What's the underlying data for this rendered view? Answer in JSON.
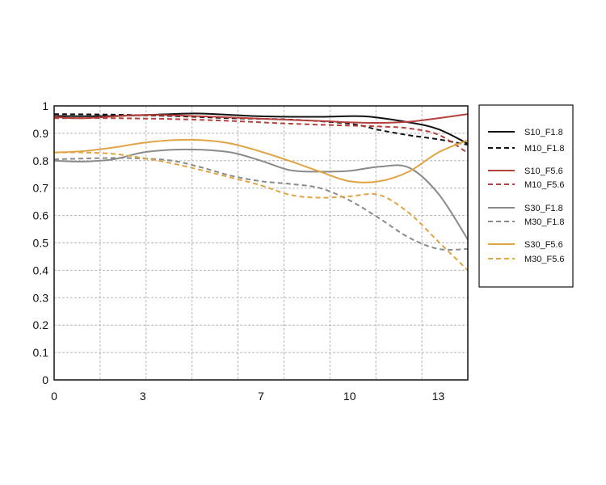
{
  "chart_data": {
    "type": "line",
    "title": "",
    "xlabel": "",
    "ylabel": "",
    "xlim": [
      0,
      14
    ],
    "ylim": [
      0,
      1
    ],
    "x_ticks": [
      0,
      3,
      7,
      10,
      13
    ],
    "x_tick_labels": [
      "0",
      "3",
      "7",
      "10",
      "13"
    ],
    "y_ticks": [
      0,
      0.1,
      0.2,
      0.3,
      0.4,
      0.5,
      0.6,
      0.7,
      0.8,
      0.9,
      1
    ],
    "y_tick_labels": [
      "0",
      "0.1",
      "0.2",
      "0.3",
      "0.4",
      "0.5",
      "0.6",
      "0.7",
      "0.8",
      "0.9",
      "1"
    ],
    "grid": true,
    "legend_position": "right",
    "series": [
      {
        "name": "S10_F1.8",
        "color": "#111111",
        "dash": "solid",
        "x": [
          0,
          2,
          4,
          5,
          7,
          9,
          10.5,
          12,
          13,
          14
        ],
        "y": [
          0.963,
          0.963,
          0.97,
          0.972,
          0.962,
          0.96,
          0.962,
          0.94,
          0.915,
          0.862
        ]
      },
      {
        "name": "M10_F1.8",
        "color": "#111111",
        "dash": "dashed",
        "x": [
          0,
          2,
          4,
          6,
          8,
          10,
          11,
          12,
          13,
          14
        ],
        "y": [
          0.97,
          0.968,
          0.963,
          0.955,
          0.95,
          0.935,
          0.912,
          0.893,
          0.878,
          0.858
        ]
      },
      {
        "name": "S10_F5.6",
        "color": "#b5403c",
        "dash": "solid",
        "x": [
          0,
          1,
          3,
          5,
          7,
          9,
          10,
          11,
          12,
          13,
          14
        ],
        "y": [
          0.96,
          0.955,
          0.967,
          0.962,
          0.953,
          0.945,
          0.94,
          0.938,
          0.942,
          0.955,
          0.97
        ]
      },
      {
        "name": "M10_F5.6",
        "color": "#b5403c",
        "dash": "dashed",
        "x": [
          0,
          2,
          4,
          6,
          8,
          10,
          11,
          12,
          13,
          14
        ],
        "y": [
          0.955,
          0.955,
          0.952,
          0.945,
          0.935,
          0.928,
          0.925,
          0.918,
          0.895,
          0.828
        ]
      },
      {
        "name": "S30_F1.8",
        "color": "#8a8a8a",
        "dash": "solid",
        "x": [
          0,
          1,
          2,
          3,
          4,
          5,
          6,
          7,
          8,
          9,
          10,
          11,
          12,
          13,
          14
        ],
        "y": [
          0.8,
          0.797,
          0.805,
          0.83,
          0.84,
          0.84,
          0.83,
          0.8,
          0.765,
          0.76,
          0.763,
          0.778,
          0.775,
          0.68,
          0.512
        ]
      },
      {
        "name": "M30_F1.8",
        "color": "#8a8a8a",
        "dash": "dashed",
        "x": [
          0,
          1,
          2,
          3,
          4,
          5,
          6,
          7,
          8,
          9,
          10,
          11,
          12,
          13,
          14
        ],
        "y": [
          0.805,
          0.808,
          0.81,
          0.808,
          0.8,
          0.775,
          0.745,
          0.725,
          0.715,
          0.7,
          0.655,
          0.59,
          0.52,
          0.478,
          0.478
        ]
      },
      {
        "name": "S30_F5.6",
        "color": "#e0a445",
        "dash": "solid",
        "x": [
          0,
          1,
          2,
          3,
          4,
          5,
          6,
          7,
          8,
          9,
          10,
          11,
          12,
          13,
          14
        ],
        "y": [
          0.83,
          0.835,
          0.848,
          0.865,
          0.875,
          0.875,
          0.862,
          0.833,
          0.798,
          0.76,
          0.725,
          0.725,
          0.76,
          0.83,
          0.875
        ]
      },
      {
        "name": "M30_F5.6",
        "color": "#e0a445",
        "dash": "dashed",
        "x": [
          0,
          1,
          2,
          3,
          4,
          5,
          6,
          7,
          8,
          9,
          10,
          11,
          12,
          13,
          14
        ],
        "y": [
          0.83,
          0.83,
          0.825,
          0.81,
          0.79,
          0.765,
          0.738,
          0.71,
          0.675,
          0.665,
          0.67,
          0.675,
          0.61,
          0.505,
          0.4
        ]
      }
    ]
  }
}
